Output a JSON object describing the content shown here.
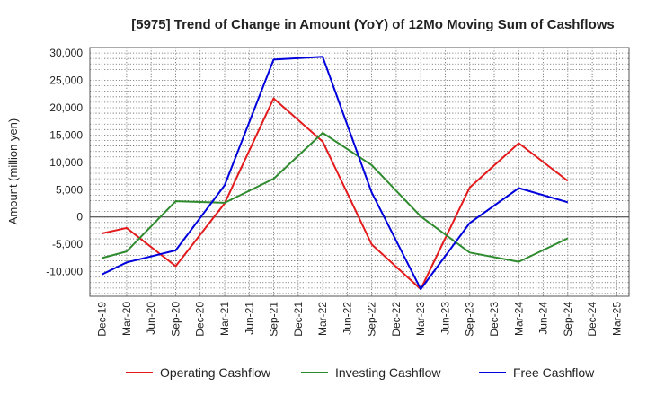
{
  "chart_data": {
    "type": "line",
    "title": "[5975]  Trend of Change in Amount (YoY) of 12Mo Moving Sum of Cashflows",
    "ylabel": "Amount (million yen)",
    "xlabel": "",
    "ylim": [
      -14500,
      31000
    ],
    "yticks": [
      -10000,
      -5000,
      0,
      5000,
      10000,
      15000,
      20000,
      25000,
      30000
    ],
    "ytick_labels": [
      "-10,000",
      "-5,000",
      "0",
      "5,000",
      "10,000",
      "15,000",
      "20,000",
      "25,000",
      "30,000"
    ],
    "categories": [
      "Dec-19",
      "Mar-20",
      "Jun-20",
      "Sep-20",
      "Dec-20",
      "Mar-21",
      "Jun-21",
      "Sep-21",
      "Dec-21",
      "Mar-22",
      "Jun-22",
      "Sep-22",
      "Dec-22",
      "Mar-23",
      "Jun-23",
      "Sep-23",
      "Dec-23",
      "Mar-24",
      "Jun-24",
      "Sep-24",
      "Dec-24",
      "Mar-25"
    ],
    "grid": true,
    "legend_position": "bottom",
    "series": [
      {
        "name": "Operating Cashflow",
        "color": "#e41a1c",
        "values": [
          -3000,
          -2000,
          null,
          -9000,
          null,
          2500,
          null,
          21700,
          null,
          13800,
          null,
          -5000,
          null,
          -13200,
          null,
          5400,
          null,
          13500,
          null,
          6600,
          null,
          null
        ]
      },
      {
        "name": "Investing Cashflow",
        "color": "#2e8b2e",
        "values": [
          -7500,
          -6300,
          null,
          2900,
          null,
          2600,
          null,
          7000,
          null,
          15400,
          null,
          9500,
          null,
          100,
          null,
          -6500,
          null,
          -8200,
          null,
          -3900,
          null,
          null
        ]
      },
      {
        "name": "Free Cashflow",
        "color": "#0000dd",
        "values": [
          -10500,
          -8300,
          null,
          -6100,
          null,
          5800,
          null,
          28800,
          null,
          29300,
          null,
          4500,
          null,
          -13200,
          null,
          -1100,
          null,
          5300,
          null,
          2700,
          null,
          null
        ]
      }
    ]
  }
}
